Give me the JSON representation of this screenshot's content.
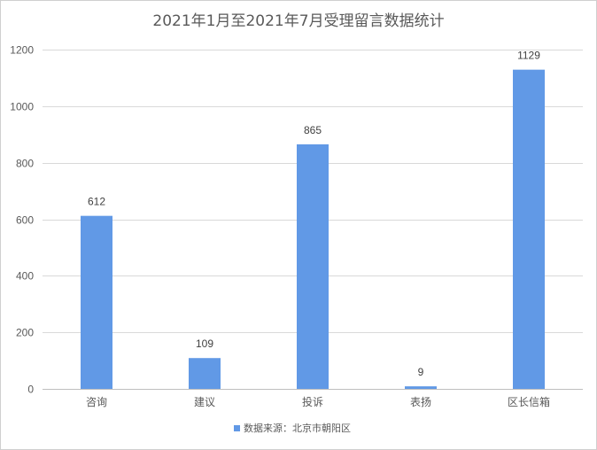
{
  "chart_data": {
    "type": "bar",
    "title": "2021年1月至2021年7月受理留言数据统计",
    "categories": [
      "咨询",
      "建议",
      "投诉",
      "表扬",
      "区长信箱"
    ],
    "series": [
      {
        "name": "数据来源：北京市朝阳区",
        "values": [
          612,
          109,
          865,
          9,
          1129
        ]
      }
    ],
    "data_labels": [
      "612",
      "109",
      "865",
      "9",
      "1129"
    ],
    "ylim": [
      0,
      1200
    ],
    "yticks": [
      0,
      200,
      400,
      600,
      800,
      1000,
      1200
    ],
    "grid": true,
    "legend_position": "bottom",
    "colors": {
      "bar": "#6199e6",
      "grid": "#d9d9d9",
      "text": "#595959"
    }
  }
}
